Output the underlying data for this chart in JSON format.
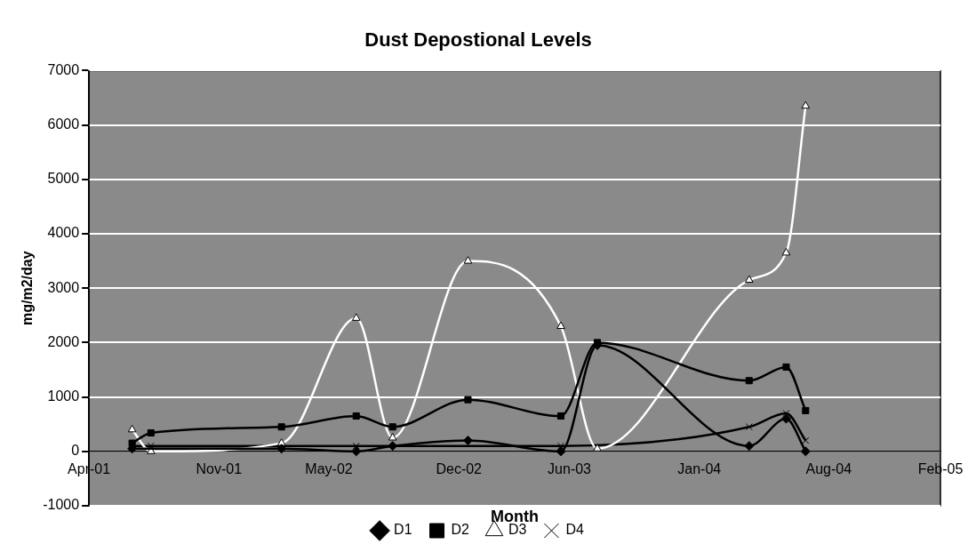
{
  "chart_data": {
    "type": "line",
    "title": "Dust Depostional Levels",
    "xlabel": "Month",
    "ylabel": "mg/m2/day",
    "x": [
      "2001-06-11",
      "2001-07-12",
      "2002-02-12",
      "2002-06-15",
      "2002-08-14",
      "2002-12-16",
      "2003-05-18",
      "2003-07-17",
      "2004-03-23",
      "2004-05-23",
      "2004-06-24"
    ],
    "series": [
      {
        "name": "D1",
        "color": "#000000",
        "marker": "diamond",
        "values": [
          50,
          null,
          50,
          0,
          100,
          200,
          0,
          1950,
          100,
          600,
          0
        ]
      },
      {
        "name": "D2",
        "color": "#000000",
        "marker": "square",
        "values": [
          150,
          340,
          450,
          650,
          450,
          950,
          650,
          2000,
          1300,
          1550,
          750
        ]
      },
      {
        "name": "D3",
        "color": "#ffffff",
        "marker": "triangle",
        "values": [
          400,
          0,
          150,
          2450,
          250,
          3500,
          2300,
          50,
          3150,
          3650,
          6350
        ]
      },
      {
        "name": "D4",
        "color": "#000000",
        "marker": "cross",
        "values": [
          100,
          100,
          100,
          100,
          null,
          null,
          100,
          null,
          450,
          700,
          200
        ]
      }
    ],
    "xlim": [
      "2001-04-01",
      "2005-02-01"
    ],
    "xticks": [
      {
        "value": "2001-04-01",
        "label": "Apr-01"
      },
      {
        "value": "2001-11-01",
        "label": "Nov-01"
      },
      {
        "value": "2002-05-01",
        "label": "May-02"
      },
      {
        "value": "2002-12-01",
        "label": "Dec-02"
      },
      {
        "value": "2003-06-01",
        "label": "Jun-03"
      },
      {
        "value": "2004-01-01",
        "label": "Jan-04"
      },
      {
        "value": "2004-08-01",
        "label": "Aug-04"
      },
      {
        "value": "2005-02-01",
        "label": "Feb-05"
      }
    ],
    "ylim": [
      -1000,
      7000
    ],
    "yticks": [
      -1000,
      0,
      1000,
      2000,
      3000,
      4000,
      5000,
      6000,
      7000
    ],
    "grid": "y",
    "legend": "bottom"
  }
}
